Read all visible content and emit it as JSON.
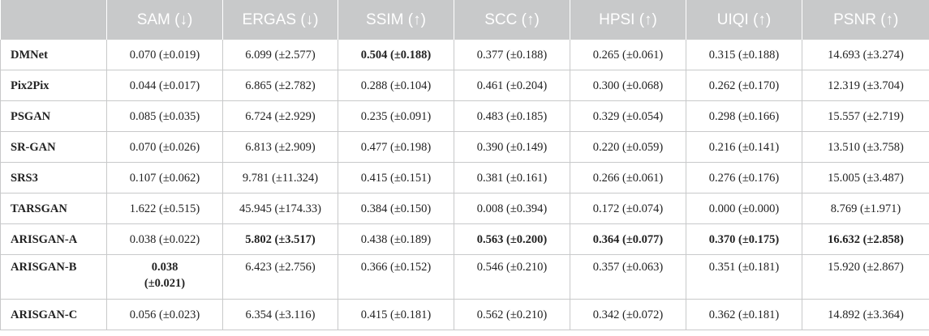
{
  "table": {
    "columns": [
      "",
      "SAM (↓)",
      "ERGAS (↓)",
      "SSIM (↑)",
      "SCC (↑)",
      "HPSI (↑)",
      "UIQI (↑)",
      "PSNR (↑)"
    ],
    "rows": [
      {
        "method": "DMNet",
        "cells": [
          "0.070 (±0.019)",
          "6.099 (±2.577)",
          "0.504 (±0.188)",
          "0.377 (±0.188)",
          "0.265 (±0.061)",
          "0.315 (±0.188)",
          "14.693 (±3.274)"
        ],
        "bold": [
          false,
          false,
          true,
          false,
          false,
          false,
          false
        ]
      },
      {
        "method": "Pix2Pix",
        "cells": [
          "0.044 (±0.017)",
          "6.865 (±2.782)",
          "0.288 (±0.104)",
          "0.461 (±0.204)",
          "0.300 (±0.068)",
          "0.262 (±0.170)",
          "12.319 (±3.704)"
        ],
        "bold": [
          false,
          false,
          false,
          false,
          false,
          false,
          false
        ]
      },
      {
        "method": "PSGAN",
        "cells": [
          "0.085 (±0.035)",
          "6.724 (±2.929)",
          "0.235 (±0.091)",
          "0.483 (±0.185)",
          "0.329 (±0.054)",
          "0.298 (±0.166)",
          "15.557 (±2.719)"
        ],
        "bold": [
          false,
          false,
          false,
          false,
          false,
          false,
          false
        ]
      },
      {
        "method": "SR-GAN",
        "cells": [
          "0.070 (±0.026)",
          "6.813 (±2.909)",
          "0.477 (±0.198)",
          "0.390 (±0.149)",
          "0.220 (±0.059)",
          "0.216 (±0.141)",
          "13.510 (±3.758)"
        ],
        "bold": [
          false,
          false,
          false,
          false,
          false,
          false,
          false
        ]
      },
      {
        "method": "SRS3",
        "cells": [
          "0.107 (±0.062)",
          "9.781 (±11.324)",
          "0.415 (±0.151)",
          "0.381 (±0.161)",
          "0.266 (±0.061)",
          "0.276 (±0.176)",
          "15.005 (±3.487)"
        ],
        "bold": [
          false,
          false,
          false,
          false,
          false,
          false,
          false
        ]
      },
      {
        "method": "TARSGAN",
        "cells": [
          "1.622 (±0.515)",
          "45.945 (±174.33)",
          "0.384 (±0.150)",
          "0.008 (±0.394)",
          "0.172 (±0.074)",
          "0.000 (±0.000)",
          "8.769 (±1.971)"
        ],
        "bold": [
          false,
          false,
          false,
          false,
          false,
          false,
          false
        ]
      },
      {
        "method": "ARISGAN-A",
        "cells": [
          "0.038 (±0.022)",
          "5.802 (±3.517)",
          "0.438 (±0.189)",
          "0.563 (±0.200)",
          "0.364 (±0.077)",
          "0.370 (±0.175)",
          "16.632 (±2.858)"
        ],
        "bold": [
          false,
          true,
          false,
          true,
          true,
          true,
          true
        ]
      },
      {
        "method": "ARISGAN-B",
        "cells": [
          "0.038 (±0.021)",
          "6.423 (±2.756)",
          "0.366 (±0.152)",
          "0.546 (±0.210)",
          "0.357 (±0.063)",
          "0.351 (±0.181)",
          "15.920 (±2.867)"
        ],
        "bold": [
          true,
          false,
          false,
          false,
          false,
          false,
          false
        ]
      },
      {
        "method": "ARISGAN-C",
        "cells": [
          "0.056 (±0.023)",
          "6.354 (±3.116)",
          "0.415 (±0.181)",
          "0.562 (±0.210)",
          "0.342 (±0.072)",
          "0.362 (±0.181)",
          "14.892 (±3.364)"
        ],
        "bold": [
          false,
          false,
          false,
          false,
          false,
          false,
          false
        ]
      }
    ]
  },
  "colors": {
    "header_bg": "#c8c9ca",
    "header_text": "#ffffff",
    "grid": "#c8c9ca"
  }
}
